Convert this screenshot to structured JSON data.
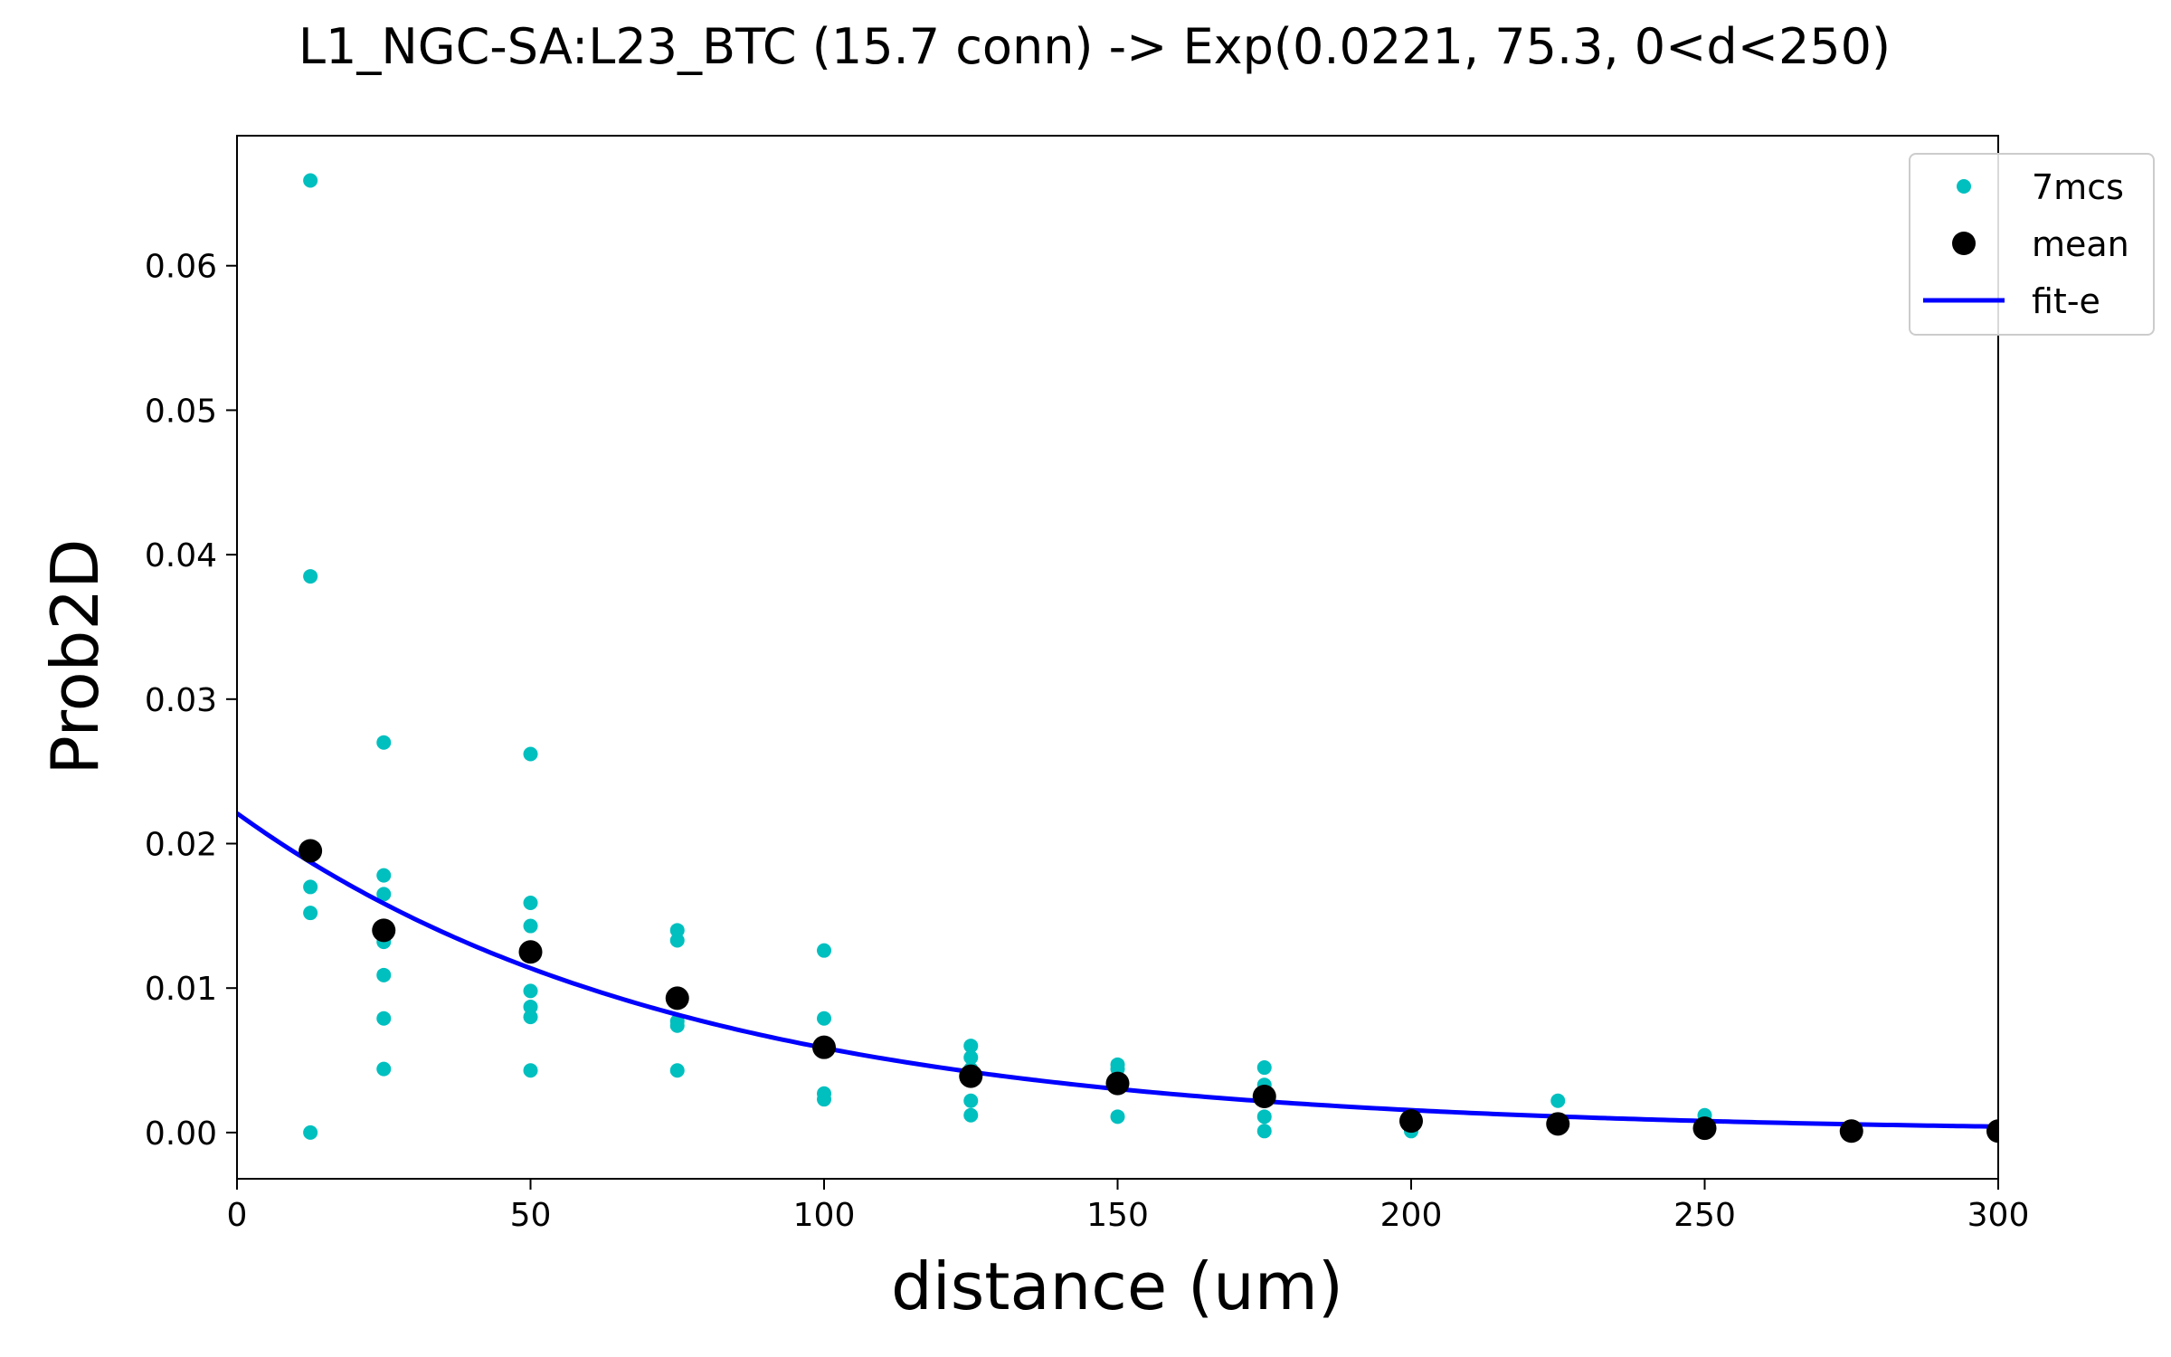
{
  "chart_data": {
    "type": "scatter",
    "title": "L1_NGC-SA:L23_BTC (15.7 conn) -> Exp(0.0221, 75.3, 0<d<250)",
    "xlabel": "distance (um)",
    "ylabel": "Prob2D",
    "xlim": [
      0,
      300
    ],
    "ylim": [
      -0.0032,
      0.069
    ],
    "xticks": [
      0,
      50,
      100,
      150,
      200,
      250,
      300
    ],
    "xtick_labels": [
      "0",
      "50",
      "100",
      "150",
      "200",
      "250",
      "300"
    ],
    "yticks": [
      0.0,
      0.01,
      0.02,
      0.03,
      0.04,
      0.05,
      0.06
    ],
    "ytick_labels": [
      "0.00",
      "0.01",
      "0.02",
      "0.03",
      "0.04",
      "0.05",
      "0.06"
    ],
    "grid": false,
    "legend_position": "top-right",
    "series": [
      {
        "name": "7mcs",
        "kind": "scatter",
        "color": "#00bfbf",
        "points": [
          [
            12.5,
            0.0659
          ],
          [
            12.5,
            0.0385
          ],
          [
            12.5,
            0.017
          ],
          [
            12.5,
            0.0152
          ],
          [
            12.5,
            0.0
          ],
          [
            25,
            0.027
          ],
          [
            25,
            0.0178
          ],
          [
            25,
            0.0165
          ],
          [
            25,
            0.0132
          ],
          [
            25,
            0.0109
          ],
          [
            25,
            0.0079
          ],
          [
            25,
            0.0044
          ],
          [
            50,
            0.0262
          ],
          [
            50,
            0.0159
          ],
          [
            50,
            0.0143
          ],
          [
            50,
            0.0098
          ],
          [
            50,
            0.0087
          ],
          [
            50,
            0.008
          ],
          [
            50,
            0.0043
          ],
          [
            75,
            0.014
          ],
          [
            75,
            0.0133
          ],
          [
            75,
            0.0077
          ],
          [
            75,
            0.0074
          ],
          [
            75,
            0.0043
          ],
          [
            100,
            0.0126
          ],
          [
            100,
            0.0079
          ],
          [
            100,
            0.0062
          ],
          [
            100,
            0.0027
          ],
          [
            100,
            0.0023
          ],
          [
            125,
            0.006
          ],
          [
            125,
            0.0052
          ],
          [
            125,
            0.0044
          ],
          [
            125,
            0.0022
          ],
          [
            125,
            0.0012
          ],
          [
            150,
            0.0047
          ],
          [
            150,
            0.0044
          ],
          [
            150,
            0.0011
          ],
          [
            175,
            0.0045
          ],
          [
            175,
            0.0033
          ],
          [
            175,
            0.0022
          ],
          [
            175,
            0.0011
          ],
          [
            175,
            0.0001
          ],
          [
            200,
            0.001
          ],
          [
            200,
            0.0001
          ],
          [
            225,
            0.0022
          ],
          [
            225,
            0.0004
          ],
          [
            250,
            0.0012
          ],
          [
            250,
            0.0002
          ],
          [
            275,
            0.0001
          ],
          [
            300,
            0.0002
          ]
        ]
      },
      {
        "name": "mean",
        "kind": "scatter",
        "color": "#000000",
        "points": [
          [
            12.5,
            0.0195
          ],
          [
            25,
            0.014
          ],
          [
            50,
            0.0125
          ],
          [
            75,
            0.0093
          ],
          [
            100,
            0.0059
          ],
          [
            125,
            0.0039
          ],
          [
            150,
            0.0034
          ],
          [
            175,
            0.0025
          ],
          [
            200,
            0.0008
          ],
          [
            225,
            0.0006
          ],
          [
            250,
            0.0003
          ],
          [
            275,
            0.0001
          ],
          [
            300,
            0.0001
          ]
        ]
      },
      {
        "name": "fit-e",
        "kind": "line",
        "color": "#0000ff",
        "function": "exp",
        "amplitude": 0.0221,
        "scale": 75.3,
        "x_range": [
          0,
          300
        ]
      }
    ]
  }
}
